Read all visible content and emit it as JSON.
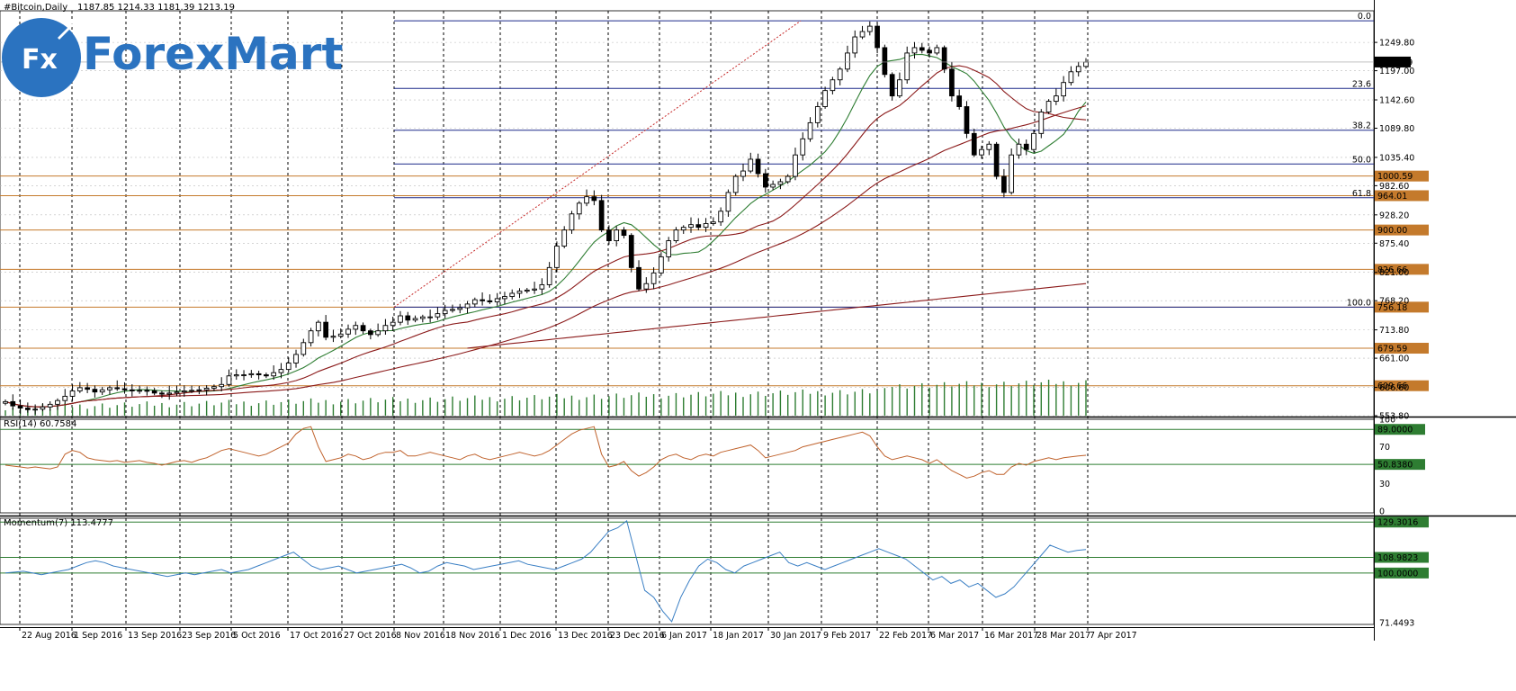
{
  "header": {
    "symbol_line": "#Bitcoin,Daily",
    "ohlc": "1187.85 1214.33 1181.39 1213.19"
  },
  "logo": {
    "mark": "Fx",
    "word": "ForexMart",
    "color": "#2b73c0"
  },
  "colors": {
    "grid": "#000000",
    "fib": "#1e2a8a",
    "level": "#c47a2c",
    "ma_fast": "#2e7d32",
    "ma_slow": "#8b1a1a",
    "volume": "#2e7d32",
    "rsi": "#c0622c",
    "momentum": "#3a7fc4",
    "osc_level": "#2e7d32"
  },
  "chart_data": [
    {
      "type": "candlestick",
      "title": "#Bitcoin,Daily",
      "ylim": [
        553.8,
        1302.0
      ],
      "current_price": 1213.19,
      "y_ticks": [
        1249.8,
        1197.0,
        1142.6,
        1089.8,
        1035.4,
        982.6,
        928.2,
        875.4,
        821.0,
        768.2,
        713.8,
        661.0,
        606.6,
        553.8
      ],
      "x_labels": [
        "22 Aug 2016",
        "1 Sep 2016",
        "13 Sep 2016",
        "23 Sep 2016",
        "5 Oct 2016",
        "17 Oct 2016",
        "27 Oct 2016",
        "8 Nov 2016",
        "18 Nov 2016",
        "1 Dec 2016",
        "13 Dec 2016",
        "23 Dec 2016",
        "6 Jan 2017",
        "18 Jan 2017",
        "30 Jan 2017",
        "9 Feb 2017",
        "22 Feb 2017",
        "6 Mar 2017",
        "16 Mar 2017",
        "28 Mar 2017",
        "7 Apr 2017"
      ],
      "price_levels": [
        {
          "value": 1000.59,
          "label": "1000.59"
        },
        {
          "value": 964.01,
          "label": "964.01"
        },
        {
          "value": 900.0,
          "label": "900.00"
        },
        {
          "value": 826.66,
          "label": "826.66"
        },
        {
          "value": 756.18,
          "label": "756.18"
        },
        {
          "value": 679.59,
          "label": "679.59"
        },
        {
          "value": 609.66,
          "label": "609.66"
        }
      ],
      "fibonacci": {
        "high": 1290.0,
        "low": 756.18,
        "levels": [
          {
            "ratio": 0.0,
            "label": "0.0"
          },
          {
            "ratio": 0.236,
            "label": "23.6"
          },
          {
            "ratio": 0.382,
            "label": "38.2"
          },
          {
            "ratio": 0.5,
            "label": "50.0"
          },
          {
            "ratio": 0.618,
            "label": "61.8"
          },
          {
            "ratio": 1.0,
            "label": "100.0"
          }
        ]
      },
      "close_series": [
        580,
        572,
        568,
        565,
        566,
        570,
        575,
        582,
        590,
        600,
        606,
        603,
        598,
        602,
        606,
        604,
        602,
        600,
        601,
        600,
        596,
        594,
        596,
        598,
        600,
        601,
        602,
        605,
        608,
        612,
        628,
        630,
        630,
        632,
        630,
        628,
        634,
        640,
        652,
        668,
        690,
        712,
        728,
        700,
        702,
        706,
        715,
        722,
        712,
        705,
        712,
        722,
        728,
        740,
        732,
        735,
        738,
        738,
        744,
        750,
        752,
        755,
        762,
        770,
        768,
        766,
        772,
        776,
        782,
        786,
        788,
        790,
        798,
        830,
        870,
        900,
        930,
        950,
        962,
        955,
        900,
        880,
        900,
        890,
        830,
        790,
        800,
        820,
        850,
        880,
        900,
        905,
        910,
        905,
        912,
        915,
        935,
        970,
        1000,
        1010,
        1032,
        1005,
        980,
        985,
        990,
        1000,
        1040,
        1070,
        1100,
        1130,
        1160,
        1180,
        1200,
        1230,
        1260,
        1270,
        1280,
        1240,
        1190,
        1150,
        1180,
        1230,
        1240,
        1235,
        1230,
        1240,
        1200,
        1150,
        1130,
        1080,
        1040,
        1050,
        1060,
        1000,
        970,
        1040,
        1060,
        1050,
        1080,
        1120,
        1140,
        1150,
        1175,
        1195,
        1205,
        1213.19
      ],
      "ma_fast_last": 1127.0,
      "ma_mid_last": 1100.0,
      "ma_slow_last": 964.0,
      "ma_long_last": 800.0
    },
    {
      "type": "line",
      "title": "RSI(14) 60.7584",
      "ylim": [
        0,
        100
      ],
      "y_ticks": [
        100,
        70,
        30,
        0
      ],
      "levels": [
        {
          "value": 89.0,
          "label": "89.0000"
        },
        {
          "value": 50.838,
          "label": "50.8380"
        }
      ],
      "values": [
        50,
        49,
        48,
        47,
        48,
        47,
        46,
        48,
        62,
        66,
        64,
        58,
        56,
        55,
        54,
        55,
        53,
        54,
        55,
        53,
        52,
        50,
        52,
        54,
        55,
        53,
        56,
        58,
        62,
        66,
        68,
        66,
        64,
        62,
        60,
        62,
        66,
        70,
        74,
        84,
        90,
        92,
        70,
        54,
        56,
        58,
        62,
        60,
        56,
        58,
        62,
        64,
        64,
        66,
        60,
        60,
        62,
        64,
        62,
        60,
        58,
        56,
        60,
        62,
        58,
        56,
        58,
        60,
        62,
        64,
        62,
        60,
        62,
        66,
        72,
        78,
        84,
        88,
        90,
        92,
        62,
        48,
        50,
        54,
        44,
        38,
        42,
        48,
        56,
        60,
        62,
        58,
        56,
        60,
        62,
        60,
        64,
        66,
        68,
        70,
        72,
        66,
        58,
        60,
        62,
        64,
        66,
        70,
        72,
        74,
        76,
        78,
        80,
        82,
        84,
        86,
        82,
        70,
        60,
        56,
        58,
        60,
        58,
        56,
        52,
        56,
        50,
        44,
        40,
        36,
        38,
        42,
        44,
        40,
        40,
        48,
        52,
        50,
        54,
        56,
        58,
        56,
        58,
        59,
        60,
        60.76
      ]
    },
    {
      "type": "line",
      "title": "Momentum(7) 113.4777",
      "ylim": [
        71.4493,
        131.5
      ],
      "y_ticks": [
        71.4493
      ],
      "levels": [
        {
          "value": 129.3016,
          "label": "129.3016"
        },
        {
          "value": 108.9823,
          "label": "108.9823"
        },
        {
          "value": 100.0,
          "label": "100.0000"
        }
      ],
      "values": [
        100,
        100.5,
        101,
        100,
        99,
        100,
        101,
        102,
        104,
        106,
        107,
        106,
        104,
        103,
        102,
        101,
        100,
        99,
        98,
        99,
        100,
        99,
        100,
        101,
        102,
        100,
        101,
        102,
        104,
        106,
        108,
        110,
        112,
        108,
        104,
        102,
        103,
        104,
        102,
        100,
        101,
        102,
        103,
        104,
        105,
        103,
        100,
        101,
        104,
        106,
        105,
        104,
        102,
        103,
        104,
        105,
        106,
        107,
        105,
        104,
        103,
        102,
        104,
        106,
        108,
        112,
        118,
        124,
        126,
        130,
        110,
        90,
        86,
        78,
        72,
        86,
        96,
        104,
        108,
        106,
        102,
        100,
        104,
        106,
        108,
        110,
        112,
        106,
        104,
        106,
        104,
        102,
        104,
        106,
        108,
        110,
        112,
        114,
        112,
        110,
        108,
        104,
        100,
        96,
        98,
        94,
        96,
        92,
        94,
        90,
        86,
        88,
        92,
        98,
        104,
        110,
        116,
        114,
        112,
        113,
        113.48
      ]
    }
  ]
}
